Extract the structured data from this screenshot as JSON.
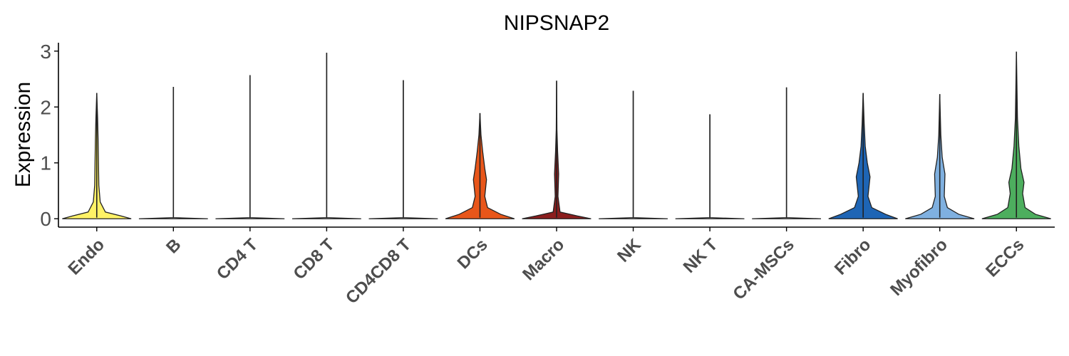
{
  "chart_data": {
    "type": "violin",
    "title": "NIPSNAP2",
    "xlabel": "",
    "ylabel": "Expression",
    "ylim": [
      -0.15,
      3.15
    ],
    "yticks": [
      0,
      1,
      2,
      3
    ],
    "grid": false,
    "legend": "none",
    "categories": [
      "Endo",
      "B",
      "CD4 T",
      "CD8 T",
      "CD4CD8 T",
      "DCs",
      "Macro",
      "NK",
      "NK T",
      "CA-MSCs",
      "Fibro",
      "Myofibro",
      "ECCs"
    ],
    "colors": [
      "#FFF266",
      "#FFFFFF",
      "#FFFFFF",
      "#FFFFFF",
      "#FFFFFF",
      "#E8561A",
      "#8B1E1E",
      "#FFFFFF",
      "#FFFFFF",
      "#FFFFFF",
      "#1E65B5",
      "#7FB0E0",
      "#4DAE5E"
    ],
    "max_values": [
      2.25,
      2.36,
      2.57,
      2.97,
      2.48,
      1.89,
      2.47,
      2.29,
      1.87,
      2.35,
      2.25,
      2.23,
      2.99
    ],
    "density_profiles": [
      [
        [
          0,
          1.0
        ],
        [
          0.05,
          0.7
        ],
        [
          0.12,
          0.25
        ],
        [
          0.3,
          0.1
        ],
        [
          0.6,
          0.06
        ],
        [
          1.0,
          0.05
        ],
        [
          1.4,
          0.04
        ],
        [
          1.8,
          0.025
        ],
        [
          2.25,
          0.0
        ]
      ],
      [
        [
          0,
          1.0
        ],
        [
          0.02,
          0.0
        ],
        [
          2.36,
          0.0
        ]
      ],
      [
        [
          0,
          1.0
        ],
        [
          0.02,
          0.0
        ],
        [
          2.57,
          0.0
        ]
      ],
      [
        [
          0,
          1.0
        ],
        [
          0.02,
          0.0
        ],
        [
          2.97,
          0.0
        ]
      ],
      [
        [
          0,
          1.0
        ],
        [
          0.02,
          0.0
        ],
        [
          2.48,
          0.0
        ]
      ],
      [
        [
          0,
          1.0
        ],
        [
          0.08,
          0.6
        ],
        [
          0.2,
          0.22
        ],
        [
          0.4,
          0.14
        ],
        [
          0.7,
          0.19
        ],
        [
          0.9,
          0.14
        ],
        [
          1.2,
          0.08
        ],
        [
          1.5,
          0.03
        ],
        [
          1.89,
          0.0
        ]
      ],
      [
        [
          0,
          1.0
        ],
        [
          0.05,
          0.6
        ],
        [
          0.12,
          0.1
        ],
        [
          0.4,
          0.04
        ],
        [
          0.8,
          0.06
        ],
        [
          1.2,
          0.03
        ],
        [
          1.6,
          0.01
        ],
        [
          2.47,
          0.0
        ]
      ],
      [
        [
          0,
          1.0
        ],
        [
          0.02,
          0.0
        ],
        [
          2.29,
          0.0
        ]
      ],
      [
        [
          0,
          1.0
        ],
        [
          0.02,
          0.0
        ],
        [
          1.87,
          0.0
        ]
      ],
      [
        [
          0,
          1.0
        ],
        [
          0.02,
          0.0
        ],
        [
          2.35,
          0.0
        ]
      ],
      [
        [
          0,
          1.0
        ],
        [
          0.08,
          0.65
        ],
        [
          0.2,
          0.25
        ],
        [
          0.4,
          0.14
        ],
        [
          0.75,
          0.2
        ],
        [
          1.0,
          0.12
        ],
        [
          1.3,
          0.06
        ],
        [
          1.7,
          0.03
        ],
        [
          2.25,
          0.0
        ]
      ],
      [
        [
          0,
          1.0
        ],
        [
          0.08,
          0.55
        ],
        [
          0.2,
          0.22
        ],
        [
          0.4,
          0.13
        ],
        [
          0.8,
          0.15
        ],
        [
          1.1,
          0.07
        ],
        [
          1.5,
          0.03
        ],
        [
          2.23,
          0.0
        ]
      ],
      [
        [
          0,
          1.0
        ],
        [
          0.08,
          0.55
        ],
        [
          0.2,
          0.25
        ],
        [
          0.45,
          0.18
        ],
        [
          0.65,
          0.22
        ],
        [
          0.9,
          0.13
        ],
        [
          1.3,
          0.07
        ],
        [
          1.8,
          0.03
        ],
        [
          2.99,
          0.0
        ]
      ]
    ]
  }
}
